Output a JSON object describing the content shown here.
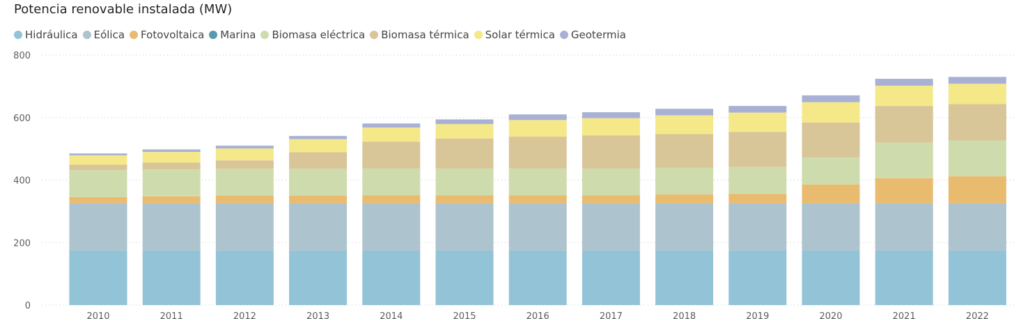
{
  "chart_data": {
    "type": "bar",
    "stacked": true,
    "title": "Potencia renovable instalada (MW)",
    "categories": [
      "2010",
      "2011",
      "2012",
      "2013",
      "2014",
      "2015",
      "2016",
      "2017",
      "2018",
      "2019",
      "2020",
      "2021",
      "2022"
    ],
    "ylim": [
      0,
      800
    ],
    "yticks": [
      0,
      200,
      400,
      600,
      800
    ],
    "grid": true,
    "legend_position": "top-left",
    "series": [
      {
        "name": "Hidráulica",
        "color": "#93c3d6",
        "values": [
          174,
          174,
          174,
          174,
          174,
          174,
          174,
          174,
          174,
          174,
          174,
          174,
          174
        ]
      },
      {
        "name": "Eólica",
        "color": "#adc3cd",
        "values": [
          152,
          152,
          152,
          152,
          152,
          152,
          152,
          152,
          152,
          152,
          152,
          152,
          152
        ]
      },
      {
        "name": "Fotovoltaica",
        "color": "#e9bb6f",
        "values": [
          20,
          22,
          24,
          24,
          25,
          25,
          25,
          25,
          28,
          30,
          60,
          80,
          86
        ]
      },
      {
        "name": "Marina",
        "color": "#5b9aac",
        "values": [
          0,
          0,
          0,
          0,
          0,
          0,
          0,
          0,
          0,
          0,
          0,
          0,
          0
        ]
      },
      {
        "name": "Biomasa eléctrica",
        "color": "#cedcad",
        "values": [
          86,
          86,
          86,
          86,
          86,
          86,
          86,
          86,
          86,
          86,
          86,
          114,
          115
        ]
      },
      {
        "name": "Biomasa térmica",
        "color": "#d8c598",
        "values": [
          17,
          22,
          27,
          53,
          86,
          96,
          102,
          106,
          107,
          112,
          112,
          117,
          116
        ]
      },
      {
        "name": "Solar térmica",
        "color": "#f5e888",
        "values": [
          30,
          34,
          38,
          42,
          45,
          46,
          53,
          55,
          60,
          62,
          65,
          65,
          65
        ]
      },
      {
        "name": "Geotermia",
        "color": "#a8b1d4",
        "values": [
          6,
          8,
          9,
          10,
          13,
          15,
          18,
          19,
          21,
          21,
          22,
          22,
          22
        ]
      }
    ]
  }
}
